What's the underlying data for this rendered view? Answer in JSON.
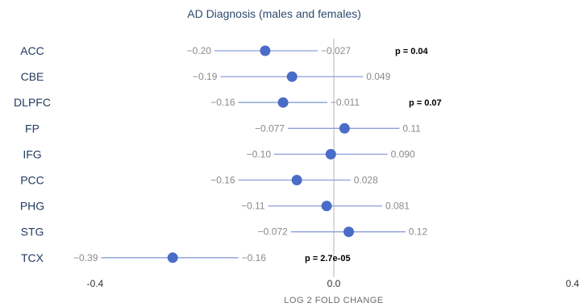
{
  "chart_data": {
    "type": "forest",
    "title": "AD Diagnosis (males and females)",
    "xlabel": "LOG 2 FOLD CHANGE",
    "xlim": [
      -0.4,
      0.4
    ],
    "xticks": [
      "-0.4",
      "0.0",
      "0.4"
    ],
    "point_color": "#4a6cc8",
    "line_color": "#8a9fd9",
    "rows": [
      {
        "region": "ACC",
        "estimate": -0.115,
        "lower": -0.2,
        "upper": -0.027,
        "lower_label": "−0.20",
        "upper_label": "−0.027",
        "p": "p = 0.04"
      },
      {
        "region": "CBE",
        "estimate": -0.07,
        "lower": -0.19,
        "upper": 0.049,
        "lower_label": "−0.19",
        "upper_label": "0.049",
        "p": ""
      },
      {
        "region": "DLPFC",
        "estimate": -0.085,
        "lower": -0.16,
        "upper": -0.011,
        "lower_label": "−0.16",
        "upper_label": "−0.011",
        "p": "p = 0.07"
      },
      {
        "region": "FP",
        "estimate": 0.018,
        "lower": -0.077,
        "upper": 0.11,
        "lower_label": "−0.077",
        "upper_label": "0.11",
        "p": ""
      },
      {
        "region": "IFG",
        "estimate": -0.005,
        "lower": -0.1,
        "upper": 0.09,
        "lower_label": "−0.10",
        "upper_label": "0.090",
        "p": ""
      },
      {
        "region": "PCC",
        "estimate": -0.062,
        "lower": -0.16,
        "upper": 0.028,
        "lower_label": "−0.16",
        "upper_label": "0.028",
        "p": ""
      },
      {
        "region": "PHG",
        "estimate": -0.012,
        "lower": -0.11,
        "upper": 0.081,
        "lower_label": "−0.11",
        "upper_label": "0.081",
        "p": ""
      },
      {
        "region": "STG",
        "estimate": 0.025,
        "lower": -0.072,
        "upper": 0.12,
        "lower_label": "−0.072",
        "upper_label": "0.12",
        "p": ""
      },
      {
        "region": "TCX",
        "estimate": -0.27,
        "lower": -0.39,
        "upper": -0.16,
        "lower_label": "−0.39",
        "upper_label": "−0.16",
        "p": "p = 2.7e-05"
      }
    ]
  }
}
